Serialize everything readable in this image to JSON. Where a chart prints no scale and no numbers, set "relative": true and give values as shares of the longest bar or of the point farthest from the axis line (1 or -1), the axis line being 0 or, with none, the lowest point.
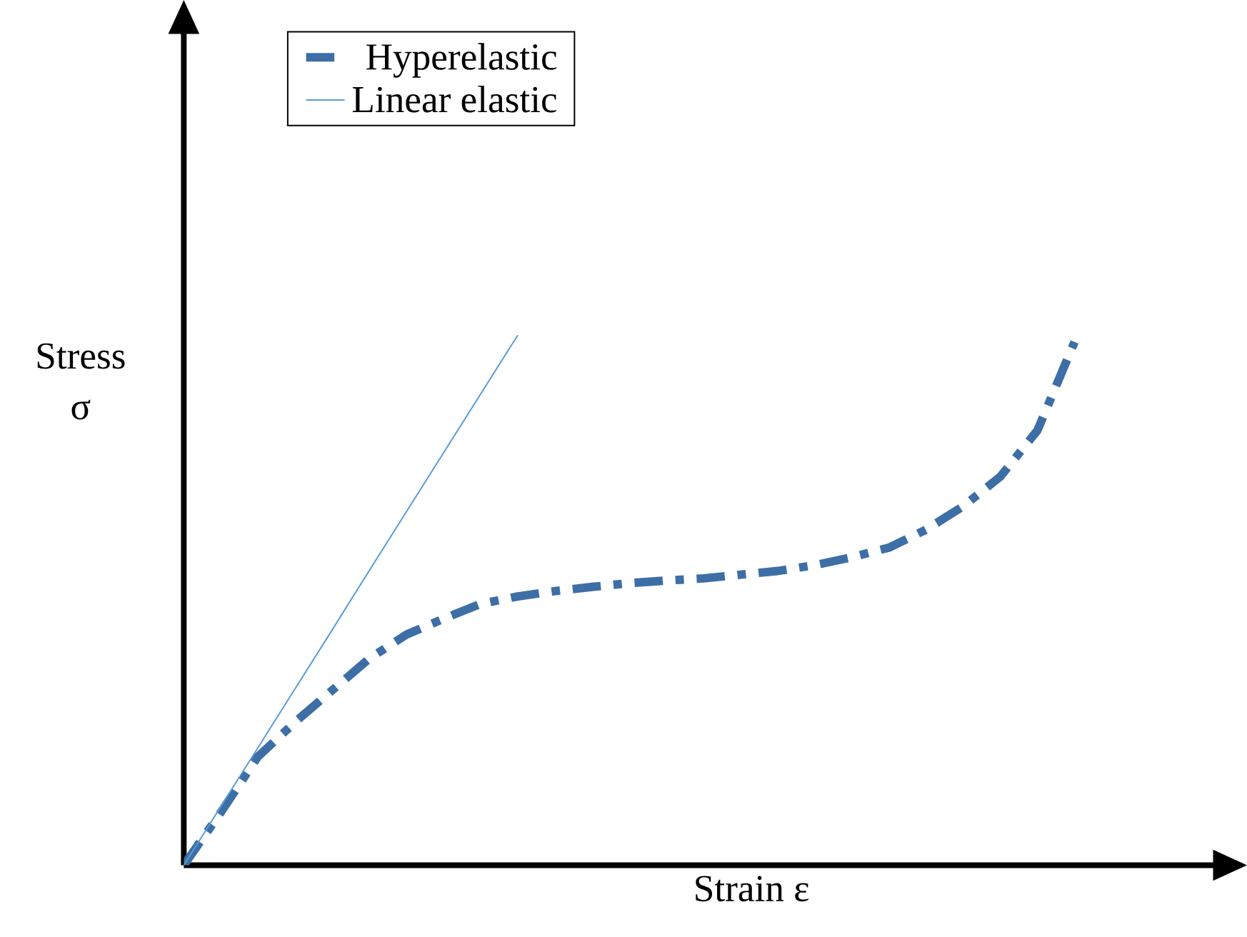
{
  "chart_data": {
    "type": "line",
    "relative": true,
    "xlabel": "Strain ε",
    "ylabel": "Stress σ",
    "legend": "top",
    "categories": [
      null,
      null,
      null,
      null,
      null,
      null,
      null,
      null,
      null,
      null,
      null,
      null,
      null,
      null,
      null,
      null,
      null,
      null,
      null,
      null,
      null,
      null,
      null,
      null,
      null
    ],
    "series": [
      {
        "name": "Hyperelastic",
        "color": "#3d6fa6",
        "line_style": "dashed",
        "values": [
          0,
          0.1,
          0.205,
          0.27,
          0.33,
          0.39,
          0.435,
          0.465,
          0.493,
          0.507,
          0.517,
          0.525,
          0.532,
          0.537,
          0.541,
          0.548,
          0.555,
          0.566,
          0.581,
          0.599,
          0.633,
          0.677,
          0.733,
          0.82,
          0.987
        ]
      },
      {
        "name": "Linear elastic",
        "color": "#5b9bd5",
        "line_style": "solid",
        "values": [
          0,
          0.111,
          0.222,
          0.333,
          0.444,
          0.556,
          0.667,
          0.778,
          0.889,
          1,
          null,
          null,
          null,
          null,
          null,
          null,
          null,
          null,
          null,
          null,
          null,
          null,
          null,
          null,
          null
        ]
      }
    ]
  }
}
